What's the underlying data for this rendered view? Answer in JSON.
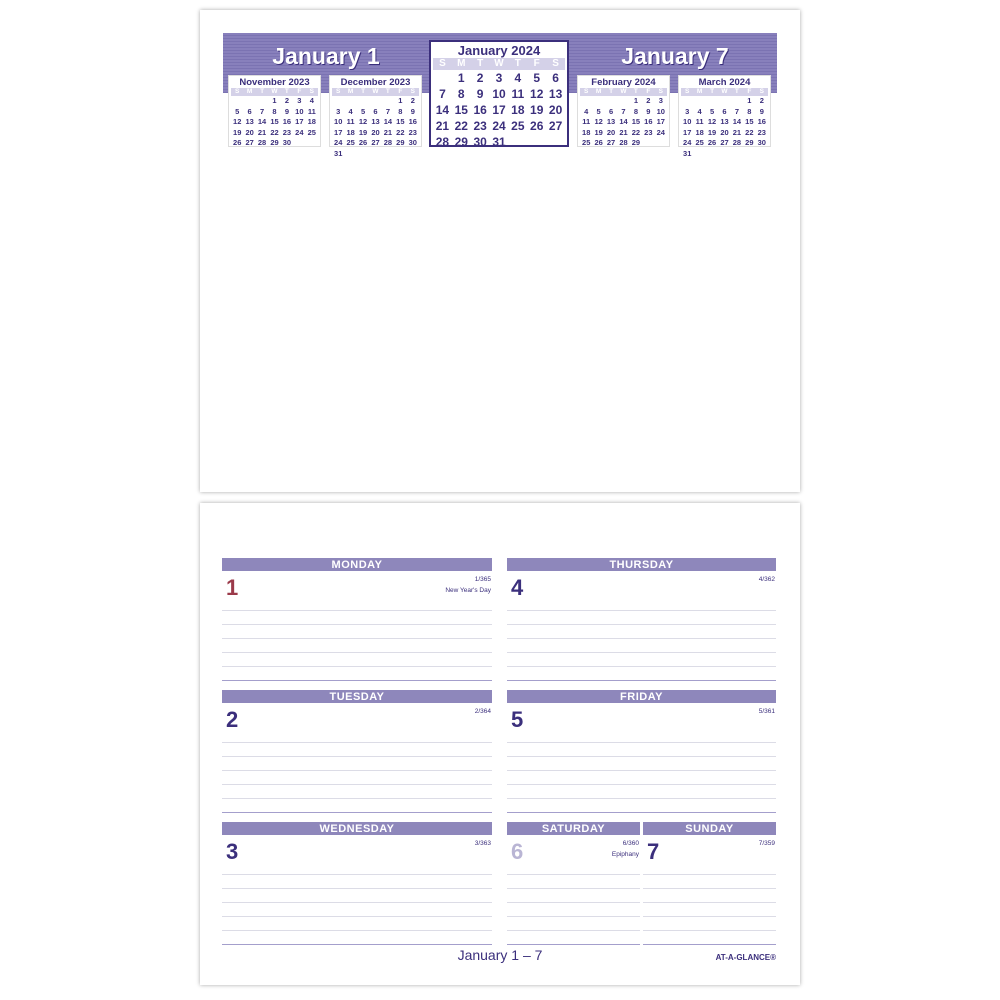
{
  "top": {
    "left_date": "January 1",
    "right_date": "January 7",
    "weekdays": [
      "S",
      "M",
      "T",
      "W",
      "T",
      "F",
      "S"
    ],
    "current": {
      "title": "January 2024",
      "weeks": [
        [
          "",
          "1",
          "2",
          "3",
          "4",
          "5",
          "6"
        ],
        [
          "7",
          "8",
          "9",
          "10",
          "11",
          "12",
          "13"
        ],
        [
          "14",
          "15",
          "16",
          "17",
          "18",
          "19",
          "20"
        ],
        [
          "21",
          "22",
          "23",
          "24",
          "25",
          "26",
          "27"
        ],
        [
          "28",
          "29",
          "30",
          "31",
          "",
          "",
          ""
        ]
      ]
    },
    "minis": [
      {
        "title": "November 2023",
        "weeks": [
          [
            "",
            "",
            "",
            "1",
            "2",
            "3",
            "4"
          ],
          [
            "5",
            "6",
            "7",
            "8",
            "9",
            "10",
            "11"
          ],
          [
            "12",
            "13",
            "14",
            "15",
            "16",
            "17",
            "18"
          ],
          [
            "19",
            "20",
            "21",
            "22",
            "23",
            "24",
            "25"
          ],
          [
            "26",
            "27",
            "28",
            "29",
            "30",
            "",
            ""
          ]
        ]
      },
      {
        "title": "December 2023",
        "weeks": [
          [
            "",
            "",
            "",
            "",
            "",
            "1",
            "2"
          ],
          [
            "3",
            "4",
            "5",
            "6",
            "7",
            "8",
            "9"
          ],
          [
            "10",
            "11",
            "12",
            "13",
            "14",
            "15",
            "16"
          ],
          [
            "17",
            "18",
            "19",
            "20",
            "21",
            "22",
            "23"
          ],
          [
            "24",
            "25",
            "26",
            "27",
            "28",
            "29",
            "30"
          ],
          [
            "31",
            "",
            "",
            "",
            "",
            "",
            ""
          ]
        ]
      },
      {
        "title": "February 2024",
        "weeks": [
          [
            "",
            "",
            "",
            "",
            "1",
            "2",
            "3"
          ],
          [
            "4",
            "5",
            "6",
            "7",
            "8",
            "9",
            "10"
          ],
          [
            "11",
            "12",
            "13",
            "14",
            "15",
            "16",
            "17"
          ],
          [
            "18",
            "19",
            "20",
            "21",
            "22",
            "23",
            "24"
          ],
          [
            "25",
            "26",
            "27",
            "28",
            "29",
            "",
            ""
          ]
        ]
      },
      {
        "title": "March 2024",
        "weeks": [
          [
            "",
            "",
            "",
            "",
            "",
            "1",
            "2"
          ],
          [
            "3",
            "4",
            "5",
            "6",
            "7",
            "8",
            "9"
          ],
          [
            "10",
            "11",
            "12",
            "13",
            "14",
            "15",
            "16"
          ],
          [
            "17",
            "18",
            "19",
            "20",
            "21",
            "22",
            "23"
          ],
          [
            "24",
            "25",
            "26",
            "27",
            "28",
            "29",
            "30"
          ],
          [
            "31",
            "",
            "",
            "",
            "",
            "",
            ""
          ]
        ]
      }
    ]
  },
  "days": [
    {
      "name": "MONDAY",
      "num": "1",
      "count": "1/365",
      "note": "New Year's Day",
      "color": "#9b3a4a"
    },
    {
      "name": "TUESDAY",
      "num": "2",
      "count": "2/364",
      "note": "",
      "color": "#3b2f7c"
    },
    {
      "name": "WEDNESDAY",
      "num": "3",
      "count": "3/363",
      "note": "",
      "color": "#3b2f7c"
    },
    {
      "name": "THURSDAY",
      "num": "4",
      "count": "4/362",
      "note": "",
      "color": "#3b2f7c"
    },
    {
      "name": "FRIDAY",
      "num": "5",
      "count": "5/361",
      "note": "",
      "color": "#3b2f7c"
    },
    {
      "name": "SATURDAY",
      "num": "6",
      "count": "6/360",
      "note": "Epiphany",
      "color": "#b9b5d4"
    },
    {
      "name": "SUNDAY",
      "num": "7",
      "count": "7/359",
      "note": "",
      "color": "#3b2f7c"
    }
  ],
  "footer": {
    "range": "January 1 – 7",
    "brand": "AT-A-GLANCE®"
  }
}
